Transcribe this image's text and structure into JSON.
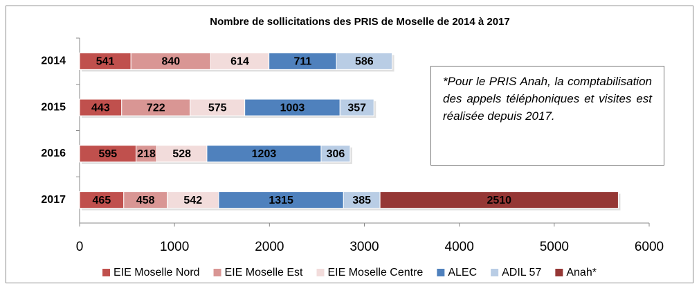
{
  "chart_data": {
    "type": "stacked_barh",
    "title": "Nombre de sollicitations des PRIS de Moselle de 2014 à 2017",
    "categories": [
      "2014",
      "2015",
      "2016",
      "2017"
    ],
    "series": [
      {
        "name": "EIE Moselle Nord",
        "color": "#c0504d",
        "values": [
          541,
          443,
          595,
          465
        ]
      },
      {
        "name": "EIE Moselle Est",
        "color": "#d99694",
        "values": [
          840,
          722,
          218,
          458
        ]
      },
      {
        "name": "EIE Moselle Centre",
        "color": "#f2dcdb",
        "values": [
          614,
          575,
          528,
          542
        ]
      },
      {
        "name": "ALEC",
        "color": "#4f81bd",
        "values": [
          711,
          1003,
          1203,
          1315
        ]
      },
      {
        "name": "ADIL 57",
        "color": "#b9cde5",
        "values": [
          586,
          357,
          306,
          385
        ]
      },
      {
        "name": "Anah*",
        "color": "#953735",
        "values": [
          null,
          null,
          null,
          2510
        ]
      }
    ],
    "xlim": [
      0,
      6000
    ],
    "xticks": [
      0,
      1000,
      2000,
      3000,
      4000,
      5000,
      6000
    ],
    "legend": "bottom",
    "annotation": "*Pour le PRIS Anah, la comptabilisation des appels téléphoniques et visites est réalisée depuis 2017."
  }
}
